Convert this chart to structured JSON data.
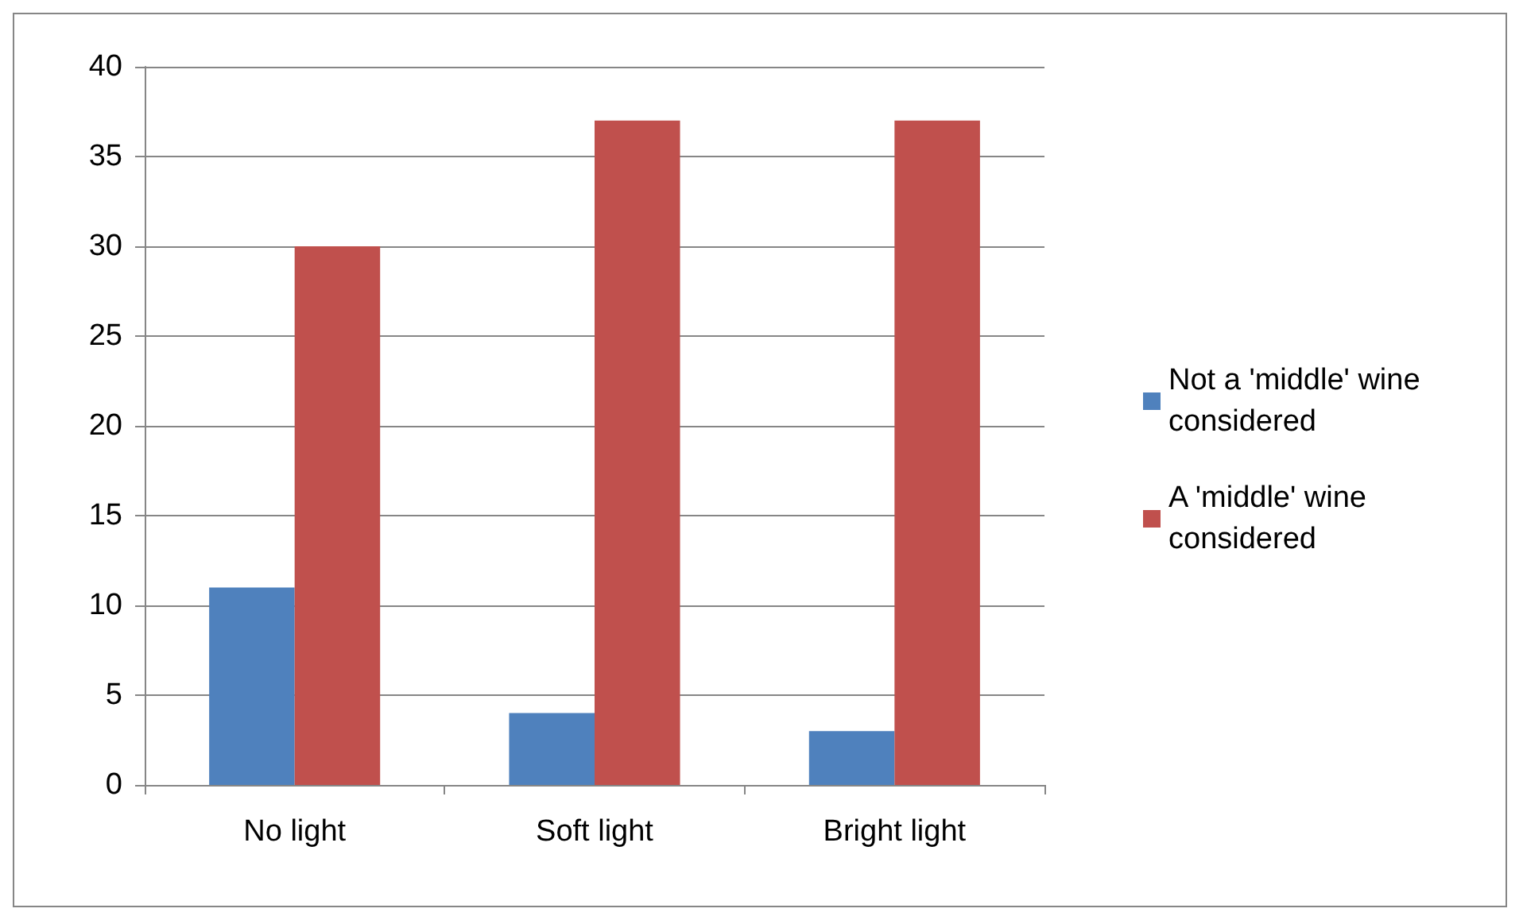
{
  "chart_data": {
    "type": "bar",
    "categories": [
      "No light",
      "Soft light",
      "Bright light"
    ],
    "series": [
      {
        "name": "Not a 'middle' wine considered",
        "color": "#4f81bd",
        "values": [
          11,
          4,
          3
        ]
      },
      {
        "name": "A 'middle' wine considered",
        "color": "#c0504d",
        "values": [
          30,
          37,
          37
        ]
      }
    ],
    "ylim": [
      0,
      40
    ],
    "yticks": [
      0,
      5,
      10,
      15,
      20,
      25,
      30,
      35,
      40
    ],
    "grid": "y",
    "legend": "right"
  }
}
